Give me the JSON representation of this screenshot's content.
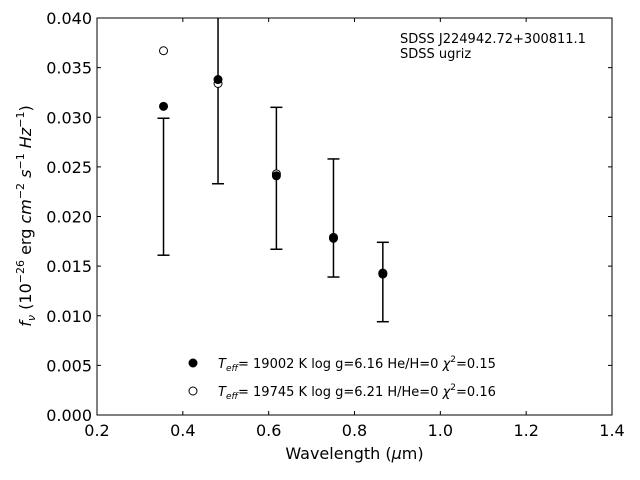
{
  "chart_data": {
    "type": "scatter",
    "xlabel": "Wavelength (μm)",
    "ylabel": "fν (10⁻²⁶ erg cm⁻² s⁻¹ Hz⁻¹)",
    "xlim": [
      0.2,
      1.4
    ],
    "ylim": [
      0.0,
      0.04
    ],
    "xticks": [
      "0.2",
      "0.4",
      "0.6",
      "0.8",
      "1.0",
      "1.2",
      "1.4"
    ],
    "yticks": [
      "0.000",
      "0.005",
      "0.010",
      "0.015",
      "0.020",
      "0.025",
      "0.030",
      "0.035",
      "0.040"
    ],
    "grid": false,
    "annotation": [
      "SDSS J224942.72+300811.1",
      "SDSS ugriz"
    ],
    "observed": {
      "x": [
        0.355,
        0.482,
        0.618,
        0.751,
        0.866
      ],
      "lower": [
        0.0161,
        0.0233,
        0.0167,
        0.0139,
        0.0094
      ],
      "upper": [
        0.0299,
        0.0408,
        0.031,
        0.0258,
        0.0174
      ]
    },
    "series": [
      {
        "label": "T_eff= 19002 K  log g=6.16  He/H=0  χ²=0.15",
        "marker": "filled-circle",
        "x": [
          0.355,
          0.482,
          0.618,
          0.751,
          0.866
        ],
        "y": [
          0.0311,
          0.0338,
          0.0241,
          0.0178,
          0.0143
        ]
      },
      {
        "label": "T_eff= 19745 K  log g=6.21  H/He=0  χ²=0.16",
        "marker": "open-circle",
        "x": [
          0.355,
          0.482,
          0.618,
          0.751,
          0.866
        ],
        "y": [
          0.0367,
          0.0334,
          0.0243,
          0.0179,
          0.0142
        ]
      }
    ],
    "legend": {
      "placement": "lower-center",
      "entries": [
        {
          "teff_value": "= 19002 K",
          "params": "log g=6.16  He/H=0",
          "chi2": "=0.15"
        },
        {
          "teff_value": "= 19745 K",
          "params": "log g=6.21  H/He=0",
          "chi2": "=0.16"
        }
      ]
    }
  }
}
